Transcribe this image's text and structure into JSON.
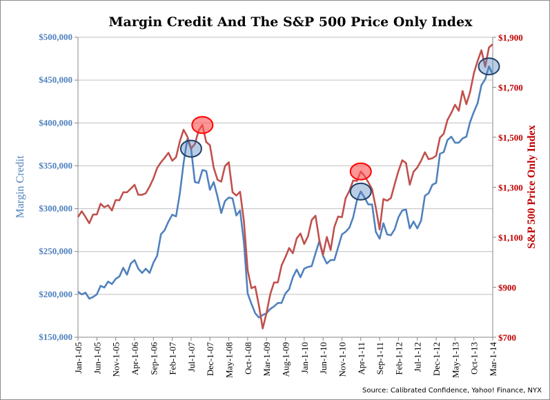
{
  "chart_data": {
    "type": "line",
    "title": "Margin Credit And The S&P 500 Price Only Index",
    "source": "Source: Calibrated Confidence, Yahoo! Finance, NYX",
    "x_start": "2005-01",
    "x_end": "2014-03",
    "x_tick_labels": [
      "Jan-1-05",
      "Jun-1-05",
      "Nov-1-05",
      "Apr-1-06",
      "Sep-1-06",
      "Feb-1-07",
      "Jul-1-07",
      "Dec-1-07",
      "May-1-08",
      "Oct-1-08",
      "Mar-1-09",
      "Aug-1-09",
      "Jan-1-10",
      "Jun-1-10",
      "Nov-1-10",
      "Apr-1-11",
      "Sep-1-11",
      "Feb-1-12",
      "Jul-1-12",
      "Dec-1-12",
      "May-1-13",
      "Oct-1-13",
      "Mar-1-14"
    ],
    "left_axis": {
      "label": "Margin Credit",
      "ylim": [
        150000,
        500000
      ],
      "ticks": [
        "$150,000",
        "$200,000",
        "$250,000",
        "$300,000",
        "$350,000",
        "$400,000",
        "$450,000",
        "$500,000"
      ],
      "color": "#4f81bd"
    },
    "right_axis": {
      "label": "S&P 500 Price Only Index",
      "ylim": [
        700,
        1900
      ],
      "ticks": [
        "$700",
        "$900",
        "$1,100",
        "$1,300",
        "$1,500",
        "$1,700",
        "$1,900"
      ],
      "color": "#c0504d"
    },
    "grid": true,
    "series": [
      {
        "axis": "left",
        "color": "#4f81bd",
        "values": [
          203,
          200,
          202,
          195,
          197,
          200,
          210,
          208,
          215,
          212,
          218,
          221,
          231,
          223,
          236,
          240,
          230,
          225,
          230,
          225,
          237,
          245,
          270,
          275,
          285,
          293,
          291,
          317,
          353,
          381,
          370,
          331,
          330,
          345,
          344,
          322,
          331,
          314,
          295,
          309,
          313,
          312,
          292,
          298,
          261,
          201,
          189,
          178,
          173,
          176,
          178,
          183,
          186,
          190,
          190,
          201,
          206,
          220,
          229,
          220,
          230,
          232,
          233,
          248,
          262,
          245,
          236,
          240,
          240,
          255,
          270,
          273,
          278,
          290,
          310,
          320,
          313,
          305,
          305,
          273,
          265,
          283,
          270,
          269,
          276,
          290,
          298,
          299,
          277,
          285,
          277,
          286,
          315,
          318,
          328,
          330,
          364,
          366,
          380,
          384,
          377,
          377,
          382,
          384,
          401,
          413,
          423,
          444,
          451,
          466,
          457
        ]
      },
      {
        "axis": "right",
        "color": "#c0504d",
        "values": [
          1181,
          1204,
          1181,
          1156,
          1191,
          1191,
          1234,
          1220,
          1228,
          1207,
          1249,
          1248,
          1280,
          1280,
          1294,
          1310,
          1270,
          1270,
          1276,
          1303,
          1335,
          1377,
          1400,
          1418,
          1438,
          1406,
          1420,
          1482,
          1530,
          1503,
          1455,
          1473,
          1526,
          1549,
          1481,
          1468,
          1378,
          1330,
          1322,
          1385,
          1400,
          1280,
          1267,
          1282,
          1166,
          968,
          896,
          903,
          825,
          735,
          797,
          872,
          919,
          919,
          987,
          1020,
          1057,
          1036,
          1095,
          1115,
          1073,
          1104,
          1169,
          1186,
          1089,
          1030,
          1101,
          1049,
          1141,
          1183,
          1180,
          1257,
          1286,
          1327,
          1325,
          1363,
          1345,
          1320,
          1292,
          1218,
          1131,
          1253,
          1246,
          1257,
          1312,
          1365,
          1408,
          1397,
          1310,
          1362,
          1379,
          1406,
          1440,
          1412,
          1416,
          1426,
          1498,
          1514,
          1569,
          1597,
          1630,
          1606,
          1685,
          1632,
          1681,
          1756,
          1805,
          1848,
          1782,
          1859,
          1872
        ]
      }
    ],
    "highlights": [
      {
        "series": 0,
        "month_index": 30,
        "color": "#4f81bd"
      },
      {
        "series": 1,
        "month_index": 33,
        "color": "#ff0000"
      },
      {
        "series": 0,
        "month_index": 75,
        "color": "#4f81bd"
      },
      {
        "series": 1,
        "month_index": 75,
        "color": "#ff0000"
      },
      {
        "series": 0,
        "month_index": 109,
        "color": "#4f81bd"
      }
    ]
  }
}
